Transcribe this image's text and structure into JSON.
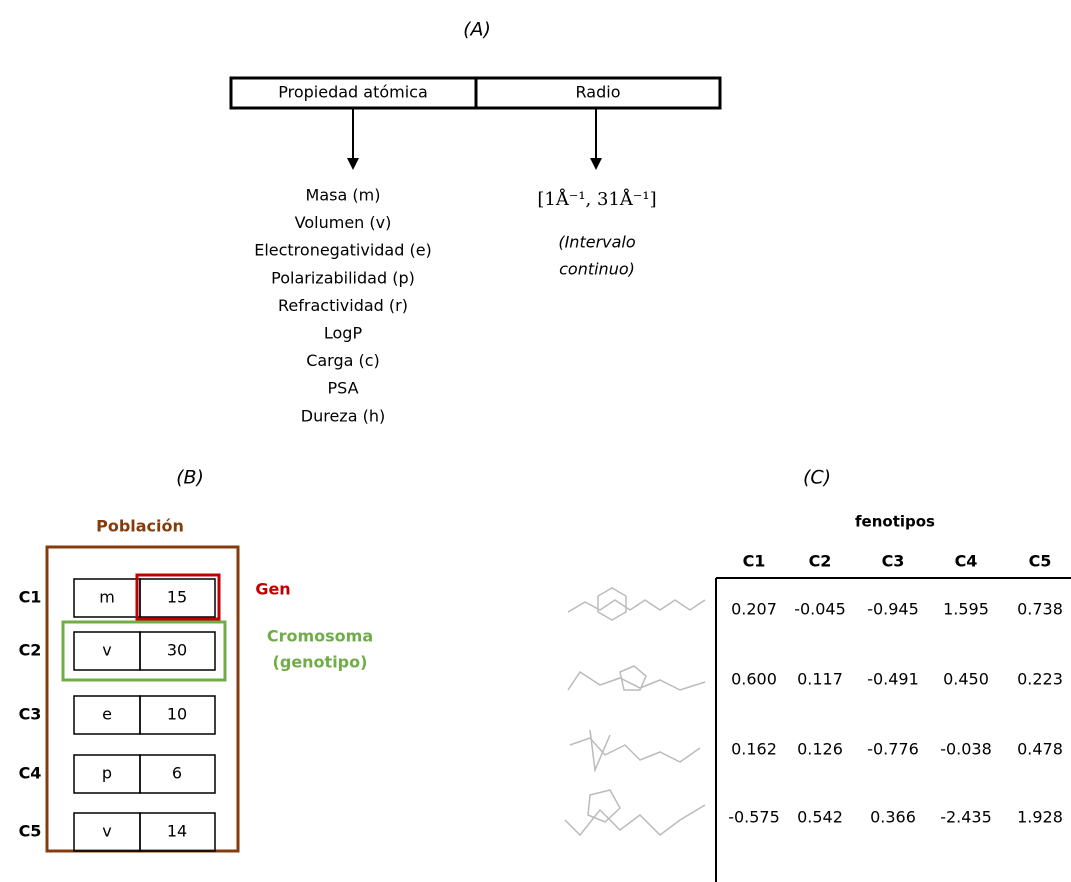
{
  "panel_a": {
    "label": "(A)",
    "header": [
      "Propiedad atómica",
      "Radio"
    ],
    "properties": [
      "Masa (m)",
      "Volumen (v)",
      "Electronegatividad (e)",
      "Polarizabilidad (p)",
      "Refractividad (r)",
      "LogP",
      "Carga (c)",
      "PSA",
      "Dureza (h)"
    ],
    "interval": "[1Å⁻¹, 31Å⁻¹]",
    "interval_note": [
      "(Intervalo",
      "continuo)"
    ]
  },
  "panel_b": {
    "label": "(B)",
    "title": "Población",
    "rows": [
      {
        "name": "C1",
        "gene": "m",
        "value": "15"
      },
      {
        "name": "C2",
        "gene": "v",
        "value": "30"
      },
      {
        "name": "C3",
        "gene": "e",
        "value": "10"
      },
      {
        "name": "C4",
        "gene": "p",
        "value": "6"
      },
      {
        "name": "C5",
        "gene": "v",
        "value": "14"
      }
    ],
    "gene_label": "Gen",
    "chromosome_label": [
      "Cromosoma",
      "(genotipo)"
    ]
  },
  "panel_c": {
    "label": "(C)",
    "title": "fenotipos",
    "columns": [
      "C1",
      "C2",
      "C3",
      "C4",
      "C5"
    ],
    "rows": [
      [
        "0.207",
        "-0.045",
        "-0.945",
        "1.595",
        "0.738"
      ],
      [
        "0.600",
        "0.117",
        "-0.491",
        "0.450",
        "0.223"
      ],
      [
        "0.162",
        "0.126",
        "-0.776",
        "-0.038",
        "0.478"
      ],
      [
        "-0.575",
        "0.542",
        "0.366",
        "-2.435",
        "1.928"
      ]
    ]
  }
}
